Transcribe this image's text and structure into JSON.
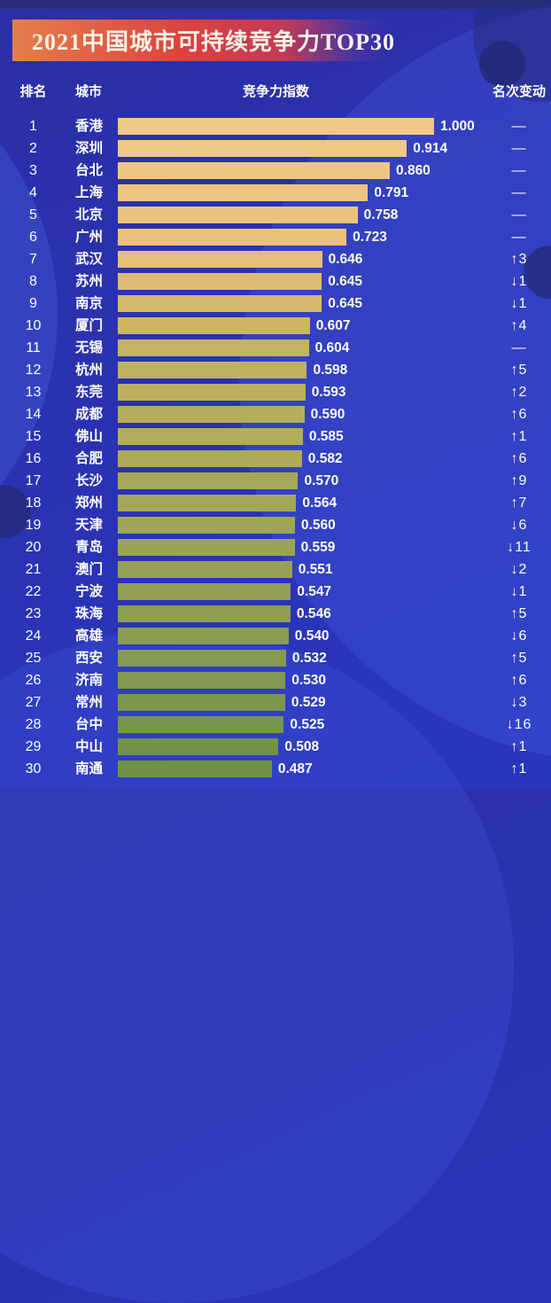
{
  "page": {
    "title": "2021中国城市可持续竞争力TOP30"
  },
  "table_header": {
    "rank": "排名",
    "city": "城市",
    "index": "竞争力指数",
    "change": "名次变动"
  },
  "chart_data": {
    "type": "bar",
    "orientation": "horizontal",
    "title": "2021中国城市可持续竞争力TOP30",
    "xlabel": "竞争力指数",
    "xlim": [
      0,
      1.0
    ],
    "legend": "none",
    "grid": false,
    "categories": [
      "香港",
      "深圳",
      "台北",
      "上海",
      "北京",
      "广州",
      "武汉",
      "苏州",
      "南京",
      "厦门",
      "无锡",
      "杭州",
      "东莞",
      "成都",
      "佛山",
      "合肥",
      "长沙",
      "郑州",
      "天津",
      "青岛",
      "澳门",
      "宁波",
      "珠海",
      "高雄",
      "西安",
      "济南",
      "常州",
      "台中",
      "中山",
      "南通"
    ],
    "values": [
      1.0,
      0.914,
      0.86,
      0.791,
      0.758,
      0.723,
      0.646,
      0.645,
      0.645,
      0.607,
      0.604,
      0.598,
      0.593,
      0.59,
      0.585,
      0.582,
      0.57,
      0.564,
      0.56,
      0.559,
      0.551,
      0.547,
      0.546,
      0.54,
      0.532,
      0.53,
      0.529,
      0.525,
      0.508,
      0.487
    ],
    "rows": [
      {
        "rank": "1",
        "city": "香港",
        "value": 1.0,
        "label": "1.000",
        "change": "—"
      },
      {
        "rank": "2",
        "city": "深圳",
        "value": 0.914,
        "label": "0.914",
        "change": "—"
      },
      {
        "rank": "3",
        "city": "台北",
        "value": 0.86,
        "label": "0.860",
        "change": "—"
      },
      {
        "rank": "4",
        "city": "上海",
        "value": 0.791,
        "label": "0.791",
        "change": "—"
      },
      {
        "rank": "5",
        "city": "北京",
        "value": 0.758,
        "label": "0.758",
        "change": "—"
      },
      {
        "rank": "6",
        "city": "广州",
        "value": 0.723,
        "label": "0.723",
        "change": "—"
      },
      {
        "rank": "7",
        "city": "武汉",
        "value": 0.646,
        "label": "0.646",
        "change": "↑3"
      },
      {
        "rank": "8",
        "city": "苏州",
        "value": 0.645,
        "label": "0.645",
        "change": "↓1"
      },
      {
        "rank": "9",
        "city": "南京",
        "value": 0.645,
        "label": "0.645",
        "change": "↓1"
      },
      {
        "rank": "10",
        "city": "厦门",
        "value": 0.607,
        "label": "0.607",
        "change": "↑4"
      },
      {
        "rank": "11",
        "city": "无锡",
        "value": 0.604,
        "label": "0.604",
        "change": "—"
      },
      {
        "rank": "12",
        "city": "杭州",
        "value": 0.598,
        "label": "0.598",
        "change": "↑5"
      },
      {
        "rank": "13",
        "city": "东莞",
        "value": 0.593,
        "label": "0.593",
        "change": "↑2"
      },
      {
        "rank": "14",
        "city": "成都",
        "value": 0.59,
        "label": "0.590",
        "change": "↑6"
      },
      {
        "rank": "15",
        "city": "佛山",
        "value": 0.585,
        "label": "0.585",
        "change": "↑1"
      },
      {
        "rank": "16",
        "city": "合肥",
        "value": 0.582,
        "label": "0.582",
        "change": "↑6"
      },
      {
        "rank": "17",
        "city": "长沙",
        "value": 0.57,
        "label": "0.570",
        "change": "↑9"
      },
      {
        "rank": "18",
        "city": "郑州",
        "value": 0.564,
        "label": "0.564",
        "change": "↑7"
      },
      {
        "rank": "19",
        "city": "天津",
        "value": 0.56,
        "label": "0.560",
        "change": "↓6"
      },
      {
        "rank": "20",
        "city": "青岛",
        "value": 0.559,
        "label": "0.559",
        "change": "↓11"
      },
      {
        "rank": "21",
        "city": "澳门",
        "value": 0.551,
        "label": "0.551",
        "change": "↓2"
      },
      {
        "rank": "22",
        "city": "宁波",
        "value": 0.547,
        "label": "0.547",
        "change": "↓1"
      },
      {
        "rank": "23",
        "city": "珠海",
        "value": 0.546,
        "label": "0.546",
        "change": "↑5"
      },
      {
        "rank": "24",
        "city": "高雄",
        "value": 0.54,
        "label": "0.540",
        "change": "↓6"
      },
      {
        "rank": "25",
        "city": "西安",
        "value": 0.532,
        "label": "0.532",
        "change": "↑5"
      },
      {
        "rank": "26",
        "city": "济南",
        "value": 0.53,
        "label": "0.530",
        "change": "↑6"
      },
      {
        "rank": "27",
        "city": "常州",
        "value": 0.529,
        "label": "0.529",
        "change": "↓3"
      },
      {
        "rank": "28",
        "city": "台中",
        "value": 0.525,
        "label": "0.525",
        "change": "↓16"
      },
      {
        "rank": "29",
        "city": "中山",
        "value": 0.508,
        "label": "0.508",
        "change": "↑1"
      },
      {
        "rank": "30",
        "city": "南通",
        "value": 0.487,
        "label": "0.487",
        "change": "↑1"
      }
    ],
    "colors": {
      "background": "#2A31AE",
      "banner_gradient": [
        "#E57F4C",
        "#DB4340"
      ],
      "text": "#FFFFFF",
      "bar_gradient_stops": [
        [
          0.0,
          "#F1C888"
        ],
        [
          0.19,
          "#E9C07D"
        ],
        [
          0.35,
          "#C2B363"
        ],
        [
          1.0,
          "#6F9149"
        ]
      ]
    }
  }
}
